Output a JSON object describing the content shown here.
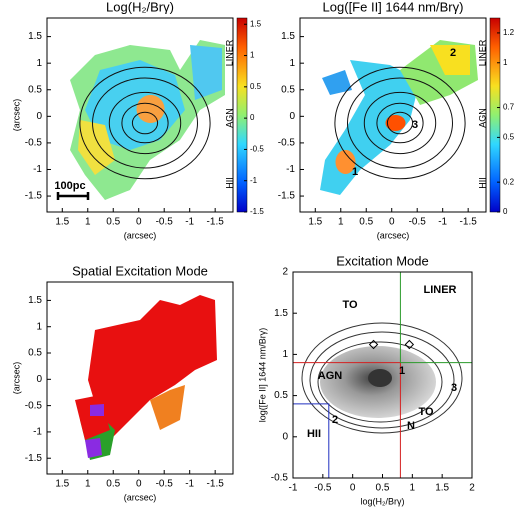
{
  "chart_data": [
    {
      "type": "map",
      "title": "Log(H₂/Brγ)",
      "xlabel": "(arcsec)",
      "ylabel": "(arcsec)",
      "xlim": [
        1.8,
        -1.85
      ],
      "ylim": [
        -1.8,
        1.85
      ],
      "xticks": [
        1.5,
        1,
        0.5,
        0,
        -0.5,
        -1,
        -1.5
      ],
      "yticks": [
        -1.5,
        -1,
        -0.5,
        0,
        0.5,
        1,
        1.5
      ],
      "colorbar": {
        "lim": [
          -1.5,
          1.6
        ],
        "ticks": [
          -1.5,
          -1,
          -0.5,
          0,
          0.5,
          1,
          1.5
        ],
        "labels": [
          "LINER",
          "AGN",
          "HII"
        ]
      },
      "annotations": [
        {
          "text": "100pc",
          "color": "#000000"
        }
      ]
    },
    {
      "type": "map",
      "title": "Log([Fe II] 1644 nm/Brγ)",
      "xlabel": "(arcsec)",
      "xlim": [
        1.8,
        -1.85
      ],
      "ylim": [
        -1.8,
        1.85
      ],
      "xticks": [
        1.5,
        1,
        0.5,
        0,
        -0.5,
        -1,
        -1.5
      ],
      "yticks": [
        -1.5,
        -1,
        -0.5,
        0,
        0.5,
        1,
        1.5
      ],
      "colorbar": {
        "lim": [
          0,
          1.3
        ],
        "ticks": [
          0,
          0.2,
          0.5,
          0.7,
          1,
          1.2
        ],
        "labels": [
          "LINER",
          "AGN",
          "HII"
        ]
      },
      "annotations": [
        {
          "text": "2",
          "color": "#e0201c"
        },
        {
          "text": "3",
          "color": "#e0201c"
        },
        {
          "text": "1",
          "color": "#e0201c"
        }
      ]
    },
    {
      "type": "mode-map",
      "title": "Spatial Excitation Mode",
      "xlabel": "(arcsec)",
      "ylabel": "(arcsec)",
      "xlim": [
        1.8,
        -1.85
      ],
      "ylim": [
        -1.8,
        1.85
      ],
      "xticks": [
        1.5,
        1,
        0.5,
        0,
        -0.5,
        -1,
        -1.5
      ],
      "yticks": [
        -1.5,
        -1,
        -0.5,
        0,
        0.5,
        1,
        1.5
      ],
      "annotations": []
    },
    {
      "type": "diagram",
      "title": "Excitation Mode",
      "xlabel": "log(H₂/Brγ)",
      "ylabel": "log([Fe II] 1644 nm/Brγ)",
      "xlim": [
        -1,
        2
      ],
      "ylim": [
        -0.5,
        2
      ],
      "xticks": [
        -1,
        -0.5,
        0,
        0.5,
        1,
        1.5,
        2
      ],
      "yticks": [
        -0.5,
        0,
        0.5,
        1,
        1.5,
        2
      ],
      "boundaries": [
        {
          "color": "#d42020",
          "x": [
            -1,
            0.8,
            0.8
          ],
          "y": [
            0.9,
            0.9,
            -0.5
          ]
        },
        {
          "color": "#2a9a2a",
          "x": [
            0.8,
            2
          ],
          "y": [
            0.9,
            0.9
          ]
        },
        {
          "color": "#2a9a2a",
          "x": [
            0.8,
            0.8
          ],
          "y": [
            0.9,
            2
          ]
        },
        {
          "color": "#2030c0",
          "x": [
            -1,
            -0.4,
            -0.4
          ],
          "y": [
            0.4,
            0.4,
            -0.5
          ]
        }
      ],
      "points": {
        "x": [
          0.35,
          0.95
        ],
        "y": [
          1.12,
          1.12
        ]
      },
      "annotations": [
        {
          "text": "TO",
          "color": "#8a2be2"
        },
        {
          "text": "LINER",
          "color": "#2a9a2a"
        },
        {
          "text": "AGN",
          "color": "#d42020"
        },
        {
          "text": "HII",
          "color": "#2030c0"
        },
        {
          "text": "TO",
          "color": "#f07820"
        },
        {
          "text": "1",
          "color": "#d42020"
        },
        {
          "text": "2",
          "color": "#d42020"
        },
        {
          "text": "3",
          "color": "#d42020"
        },
        {
          "text": "N",
          "color": "#d42020"
        }
      ]
    }
  ]
}
